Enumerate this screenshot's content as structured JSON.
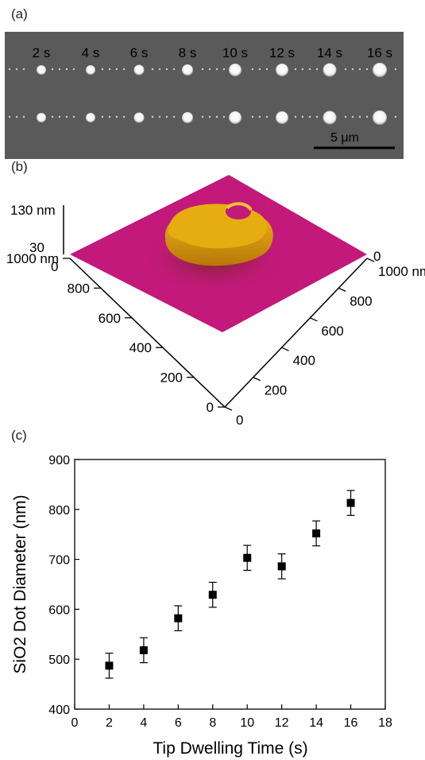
{
  "panels": {
    "a": {
      "label": "(a)",
      "time_labels": [
        "2 s",
        "4 s",
        "6 s",
        "8 s",
        "10 s",
        "12 s",
        "14 s",
        "16 s"
      ],
      "scale_bar": "5 μm"
    },
    "b": {
      "label": "(b)",
      "z_ticks": [
        "130 nm",
        "30",
        "0"
      ],
      "left_axis_ticks": [
        "1000 nm",
        "800",
        "600",
        "400",
        "200",
        "0"
      ],
      "right_axis_ticks": [
        "0",
        "1000 nm",
        "800",
        "600",
        "400",
        "200",
        "0"
      ],
      "colors": {
        "surface": "#c2197a",
        "dot": "#e6ad10"
      }
    },
    "c": {
      "label": "(c)"
    }
  },
  "chart_data": {
    "type": "scatter",
    "xlabel": "Tip Dwelling Time (s)",
    "ylabel": "SiO2 Dot Diameter (nm)",
    "xlim": [
      0,
      18
    ],
    "ylim": [
      400,
      900
    ],
    "xticks": [
      0,
      2,
      4,
      6,
      8,
      10,
      12,
      14,
      16,
      18
    ],
    "yticks": [
      400,
      500,
      600,
      700,
      800,
      900
    ],
    "x": [
      2,
      4,
      6,
      8,
      10,
      12,
      14,
      16
    ],
    "y": [
      487,
      518,
      582,
      629,
      703,
      686,
      752,
      813
    ],
    "error": [
      25,
      25,
      25,
      25,
      25,
      25,
      25,
      25
    ],
    "marker": "square",
    "marker_color": "#000000",
    "grid": false
  }
}
